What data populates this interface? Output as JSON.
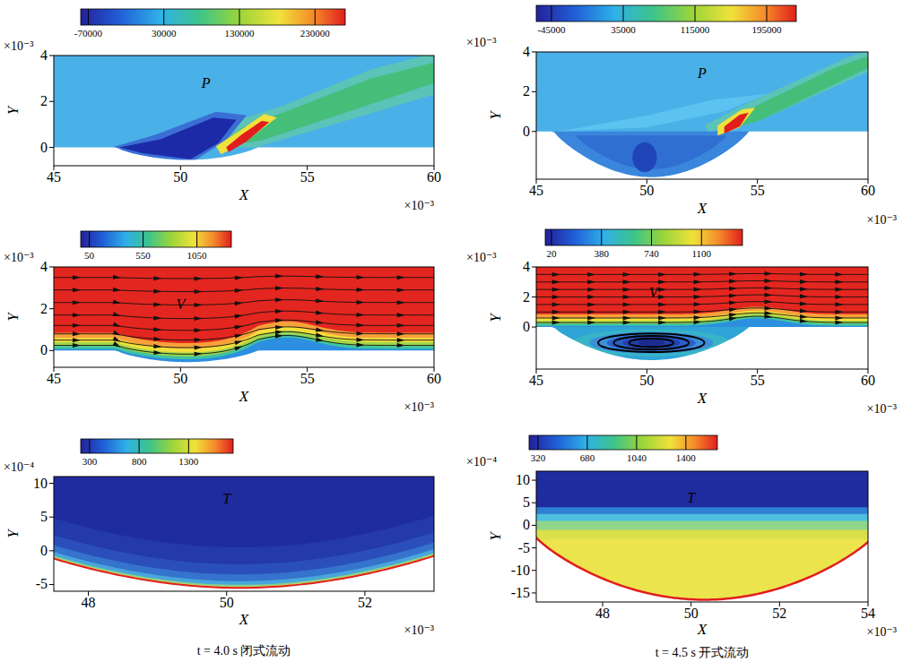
{
  "chart_data": [
    {
      "type": "contour",
      "title": "P",
      "x_label": "X",
      "y_label": "Y",
      "x_multiplier": "×10⁻³",
      "y_multiplier": "×10⁻³",
      "xlim": [
        45,
        60
      ],
      "ylim": [
        -0.8,
        4
      ],
      "xticks": [
        45,
        50,
        55,
        60
      ],
      "yticks": [
        0,
        2,
        4
      ],
      "colorbar": {
        "range": [
          -80000,
          270000
        ],
        "ticks": [
          -70000,
          30000,
          130000,
          230000
        ]
      }
    },
    {
      "type": "contour",
      "title": "P",
      "x_label": "X",
      "y_label": "Y",
      "x_multiplier": "×10⁻³",
      "y_multiplier": "×10⁻³",
      "xlim": [
        45,
        60
      ],
      "ylim": [
        -2.4,
        4
      ],
      "xticks": [
        45,
        50,
        55,
        60
      ],
      "yticks": [
        0,
        2,
        4
      ],
      "colorbar": {
        "range": [
          -62000,
          228000
        ],
        "ticks": [
          -45000,
          35000,
          115000,
          195000
        ]
      }
    },
    {
      "type": "contour",
      "title": "V",
      "x_label": "X",
      "y_label": "Y",
      "x_multiplier": "×10⁻³",
      "y_multiplier": "×10⁻³",
      "xlim": [
        45,
        60
      ],
      "ylim": [
        -0.8,
        4
      ],
      "xticks": [
        45,
        50,
        55,
        60
      ],
      "yticks": [
        0,
        2,
        4
      ],
      "colorbar": {
        "range": [
          -30,
          1370
        ],
        "ticks": [
          50,
          550,
          1050
        ]
      }
    },
    {
      "type": "contour",
      "title": "V",
      "x_label": "X",
      "y_label": "Y",
      "x_multiplier": "×10⁻³",
      "y_multiplier": "×10⁻³",
      "xlim": [
        45,
        60
      ],
      "ylim": [
        -2.8,
        4
      ],
      "xticks": [
        45,
        50,
        55,
        60
      ],
      "yticks": [
        0,
        2,
        4
      ],
      "colorbar": {
        "range": [
          -25,
          1395
        ],
        "ticks": [
          20,
          380,
          740,
          1100
        ]
      }
    },
    {
      "type": "contour",
      "title": "T",
      "x_label": "X",
      "y_label": "Y",
      "x_multiplier": "×10⁻³",
      "y_multiplier": "×10⁻⁴",
      "xlim": [
        47.5,
        53
      ],
      "ylim": [
        -6,
        11
      ],
      "xticks": [
        48,
        50,
        52
      ],
      "yticks": [
        -5,
        0,
        5,
        10
      ],
      "colorbar": {
        "range": [
          210,
          1750
        ],
        "ticks": [
          300,
          800,
          1300
        ]
      }
    },
    {
      "type": "contour",
      "title": "T",
      "x_label": "X",
      "y_label": "Y",
      "x_multiplier": "×10⁻³",
      "y_multiplier": "×10⁻⁴",
      "xlim": [
        46.5,
        54
      ],
      "ylim": [
        -17,
        12
      ],
      "xticks": [
        48,
        50,
        52,
        54
      ],
      "yticks": [
        -15,
        -10,
        -5,
        0,
        5,
        10
      ],
      "colorbar": {
        "range": [
          255,
          1630
        ],
        "ticks": [
          320,
          680,
          1040,
          1400
        ]
      }
    }
  ],
  "captions": [
    "t = 4.0 s 闭式流动",
    "t = 4.5 s 开式流动"
  ]
}
